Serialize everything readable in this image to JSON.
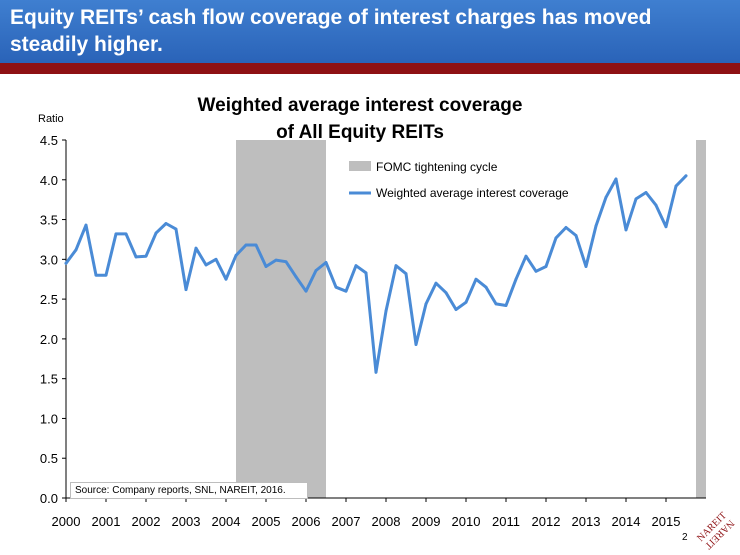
{
  "slide": {
    "title": "Equity REITs’ cash flow coverage of interest charges has moved steadily higher.",
    "page_number": "2",
    "source": "Source: Company reports, SNL, NAREIT, 2016.",
    "logo_text": "NAREIT"
  },
  "colors": {
    "header": "#2f6fc4",
    "band": "#8e1114",
    "line": "#4a8bd6",
    "shade": "#bebebe"
  },
  "chart_data": {
    "type": "line",
    "title": "Weighted average interest coverage of All Equity REITs",
    "title_lines": [
      "Weighted average interest coverage",
      "of All Equity REITs"
    ],
    "ylabel": "Ratio",
    "xlabel": "",
    "ylim": [
      0,
      4.5
    ],
    "yticks": [
      "0.0",
      "0.5",
      "1.0",
      "1.5",
      "2.0",
      "2.5",
      "3.0",
      "3.5",
      "4.0",
      "4.5"
    ],
    "xlim": [
      2000,
      2016
    ],
    "xticks": [
      "2000",
      "2001",
      "2002",
      "2003",
      "2004",
      "2005",
      "2006",
      "2007",
      "2008",
      "2009",
      "2010",
      "2011",
      "2012",
      "2013",
      "2014",
      "2015"
    ],
    "grid": false,
    "legend_position": "top-right",
    "series": [
      {
        "name": "Weighted average interest coverage",
        "type": "line",
        "x": [
          2000.0,
          2000.25,
          2000.5,
          2000.75,
          2001.0,
          2001.25,
          2001.5,
          2001.75,
          2002.0,
          2002.25,
          2002.5,
          2002.75,
          2003.0,
          2003.25,
          2003.5,
          2003.75,
          2004.0,
          2004.25,
          2004.5,
          2004.75,
          2005.0,
          2005.25,
          2005.5,
          2005.75,
          2006.0,
          2006.25,
          2006.5,
          2006.75,
          2007.0,
          2007.25,
          2007.5,
          2007.75,
          2008.0,
          2008.25,
          2008.5,
          2008.75,
          2009.0,
          2009.25,
          2009.5,
          2009.75,
          2010.0,
          2010.25,
          2010.5,
          2010.75,
          2011.0,
          2011.25,
          2011.5,
          2011.75,
          2012.0,
          2012.25,
          2012.5,
          2012.75,
          2013.0,
          2013.25,
          2013.5,
          2013.75,
          2014.0,
          2014.25,
          2014.5,
          2014.75,
          2015.0,
          2015.25,
          2015.5
        ],
        "values": [
          2.95,
          3.12,
          3.43,
          2.8,
          2.8,
          3.32,
          3.32,
          3.03,
          3.04,
          3.33,
          3.45,
          3.38,
          2.62,
          3.14,
          2.93,
          3.0,
          2.75,
          3.05,
          3.18,
          3.18,
          2.91,
          2.99,
          2.97,
          2.78,
          2.6,
          2.86,
          2.96,
          2.65,
          2.6,
          2.92,
          2.83,
          1.58,
          2.35,
          2.92,
          2.82,
          1.93,
          2.44,
          2.7,
          2.58,
          2.37,
          2.46,
          2.75,
          2.65,
          2.44,
          2.42,
          2.75,
          3.04,
          2.85,
          2.91,
          3.27,
          3.4,
          3.3,
          2.91,
          3.42,
          3.78,
          4.01,
          3.37,
          3.76,
          3.84,
          3.68,
          3.41,
          3.92,
          4.05
        ]
      },
      {
        "name": "FOMC tightening cycle",
        "type": "shaded_band",
        "ranges": [
          [
            2004.25,
            2006.5
          ],
          [
            2015.75,
            2016.0
          ]
        ]
      }
    ]
  }
}
